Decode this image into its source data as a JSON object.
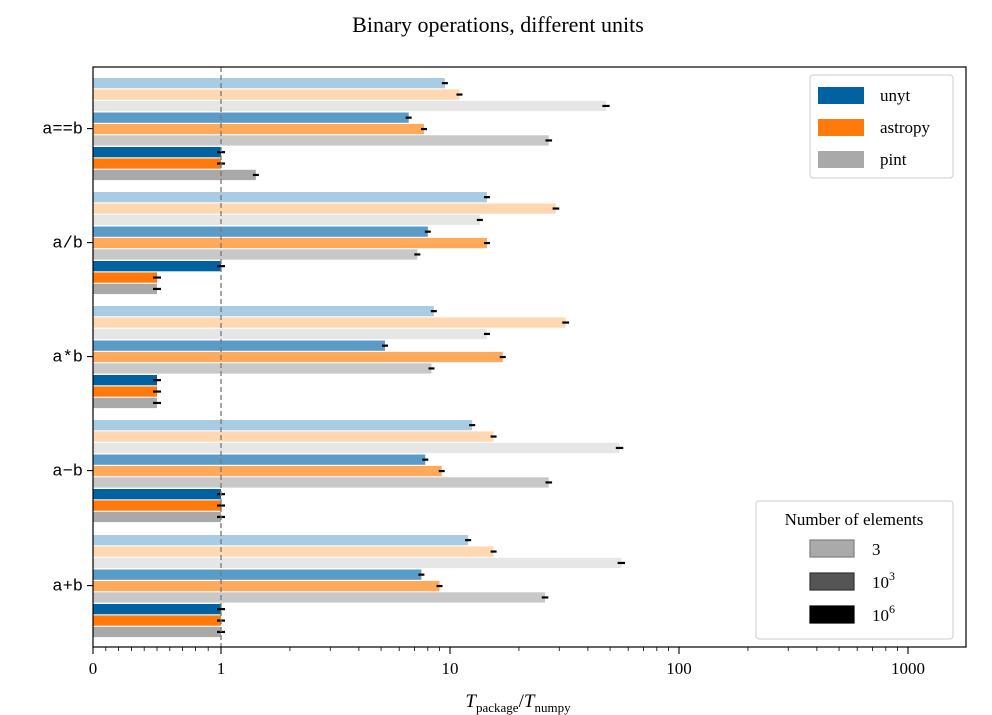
{
  "chart_data": {
    "type": "bar",
    "orientation": "horizontal",
    "title": "Binary operations, different units",
    "xlabel": {
      "main": "T",
      "sub_num": "package",
      "slash": "/",
      "sub_den": "numpy"
    },
    "xscale": "symlog",
    "xlim": [
      0,
      1000
    ],
    "x_ticks": [
      {
        "value": 0,
        "label": "0"
      },
      {
        "value": 1,
        "label": "1"
      },
      {
        "value": 10,
        "label": "10"
      },
      {
        "value": 100,
        "label": "100"
      },
      {
        "value": 1000,
        "label": "1000"
      }
    ],
    "reference_line": {
      "value": 1,
      "style": "dashed"
    },
    "categories": [
      "a==b",
      "a/b",
      "a*b",
      "a−b",
      "a+b"
    ],
    "packages": [
      {
        "name": "unyt",
        "color": "#1f77b4",
        "colors": [
          "#a9cce5",
          "#5a9bc8",
          "#0062a0"
        ]
      },
      {
        "name": "astropy",
        "color": "#ff7f0e",
        "colors": [
          "#ffd7b0",
          "#ffa95a",
          "#ff7a0a"
        ]
      },
      {
        "name": "pint",
        "color": "#aaaaaa",
        "colors": [
          "#e6e6e6",
          "#c8c8c8",
          "#a9a9a9"
        ]
      }
    ],
    "sizes": [
      {
        "label": "3",
        "base": "",
        "exp": "",
        "swatch_fill": "#aaaaaa",
        "swatch_stroke": "#808080"
      },
      {
        "label": "",
        "base": "10",
        "exp": "3",
        "swatch_fill": "#555555",
        "swatch_stroke": "#333333"
      },
      {
        "label": "",
        "base": "10",
        "exp": "6",
        "swatch_fill": "#000000",
        "swatch_stroke": "#000000"
      }
    ],
    "values": {
      "a==b": {
        "unyt": [
          9.5,
          6.6,
          1.0
        ],
        "astropy": [
          11.0,
          7.7,
          1.0
        ],
        "pint": [
          48.0,
          27.0,
          1.42
        ]
      },
      "a/b": {
        "unyt": [
          14.5,
          8.0,
          1.0
        ],
        "astropy": [
          29.0,
          14.5,
          0.5
        ],
        "pint": [
          13.5,
          7.2,
          0.5
        ]
      },
      "a*b": {
        "unyt": [
          8.5,
          5.2,
          0.5
        ],
        "astropy": [
          32.0,
          17.0,
          0.5
        ],
        "pint": [
          14.5,
          8.3,
          0.5
        ]
      },
      "a−b": {
        "unyt": [
          12.5,
          7.8,
          1.0
        ],
        "astropy": [
          15.5,
          9.2,
          1.0
        ],
        "pint": [
          55.0,
          27.0,
          1.0
        ]
      },
      "a+b": {
        "unyt": [
          12.0,
          7.5,
          1.0
        ],
        "astropy": [
          15.5,
          9.0,
          1.0
        ],
        "pint": [
          56.0,
          26.0,
          1.0
        ]
      }
    },
    "legend_packages": {
      "placement": "top-right"
    },
    "legend_sizes": {
      "title": "Number of elements",
      "placement": "bottom-right"
    }
  }
}
